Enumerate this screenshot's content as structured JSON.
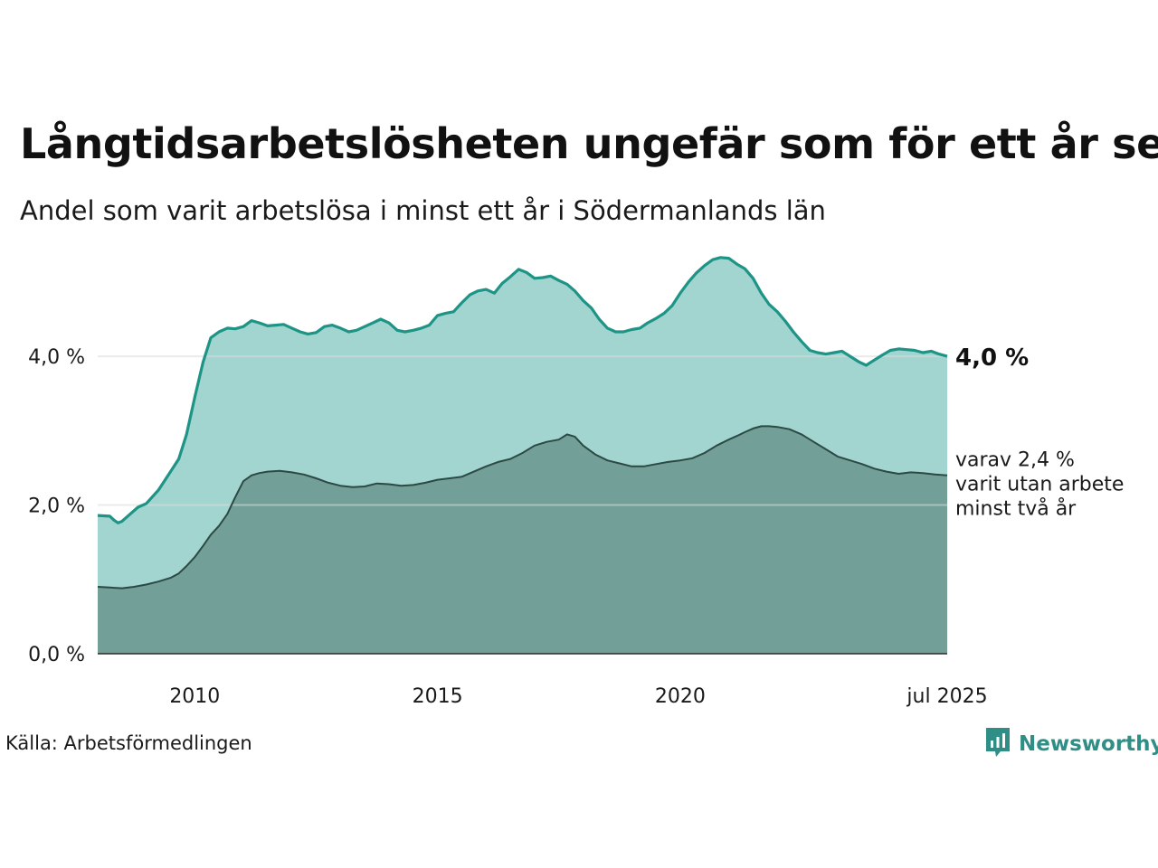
{
  "header": {
    "title": "Långtidsarbetslösheten ungefär som för ett år sen",
    "subtitle": "Andel som varit arbetslösa i minst ett år i Södermanlands län"
  },
  "footer": {
    "source": "Källa: Arbetsförmedlingen",
    "brand": "Newsworthy"
  },
  "labels": {
    "end_value": "4,0 %",
    "secondary_line1": "varav 2,4 %",
    "secondary_line2": "varit utan arbete",
    "secondary_line3": "minst två år"
  },
  "colors": {
    "series1_fill": "#a3d5d0",
    "series1_line": "#1e9486",
    "series2_fill": "#72a099",
    "series2_line": "#2c4944",
    "gridline": "#d9dedd",
    "brand": "#2f8f86"
  },
  "chart_data": {
    "type": "area",
    "xlim": [
      2008.0,
      2025.5
    ],
    "ylim": [
      0,
      5.4
    ],
    "x_ticks": [
      {
        "value": 2010,
        "label": "2010"
      },
      {
        "value": 2015,
        "label": "2015"
      },
      {
        "value": 2020,
        "label": "2020"
      },
      {
        "value": 2025.5,
        "label": "jul 2025"
      }
    ],
    "y_ticks": [
      {
        "value": 0,
        "label": "0,0 %"
      },
      {
        "value": 2,
        "label": "2,0 %"
      },
      {
        "value": 4,
        "label": "4,0 %"
      }
    ],
    "grid": true,
    "series": [
      {
        "key": "min1",
        "x": [
          2008.0,
          2008.25,
          2008.33,
          2008.42,
          2008.5,
          2008.67,
          2008.83,
          2009.0,
          2009.25,
          2009.5,
          2009.67,
          2009.83,
          2010.0,
          2010.17,
          2010.33,
          2010.5,
          2010.67,
          2010.83,
          2011.0,
          2011.17,
          2011.33,
          2011.5,
          2011.67,
          2011.83,
          2012.0,
          2012.17,
          2012.33,
          2012.5,
          2012.67,
          2012.83,
          2013.0,
          2013.17,
          2013.33,
          2013.5,
          2013.67,
          2013.83,
          2014.0,
          2014.17,
          2014.33,
          2014.5,
          2014.67,
          2014.83,
          2015.0,
          2015.17,
          2015.33,
          2015.5,
          2015.67,
          2015.83,
          2016.0,
          2016.17,
          2016.33,
          2016.5,
          2016.67,
          2016.83,
          2017.0,
          2017.17,
          2017.33,
          2017.5,
          2017.67,
          2017.83,
          2018.0,
          2018.17,
          2018.33,
          2018.5,
          2018.67,
          2018.83,
          2019.0,
          2019.17,
          2019.33,
          2019.5,
          2019.67,
          2019.83,
          2020.0,
          2020.17,
          2020.33,
          2020.5,
          2020.67,
          2020.83,
          2021.0,
          2021.17,
          2021.33,
          2021.5,
          2021.67,
          2021.83,
          2022.0,
          2022.17,
          2022.33,
          2022.5,
          2022.67,
          2022.83,
          2023.0,
          2023.17,
          2023.33,
          2023.5,
          2023.67,
          2023.83,
          2024.0,
          2024.17,
          2024.33,
          2024.5,
          2024.67,
          2024.83,
          2025.0,
          2025.17,
          2025.33,
          2025.5
        ],
        "values": [
          1.86,
          1.85,
          1.8,
          1.76,
          1.78,
          1.88,
          1.97,
          2.02,
          2.2,
          2.45,
          2.62,
          2.95,
          3.45,
          3.92,
          4.25,
          4.33,
          4.38,
          4.37,
          4.4,
          4.48,
          4.45,
          4.41,
          4.42,
          4.43,
          4.38,
          4.33,
          4.3,
          4.32,
          4.4,
          4.42,
          4.38,
          4.33,
          4.35,
          4.4,
          4.45,
          4.5,
          4.45,
          4.35,
          4.33,
          4.35,
          4.38,
          4.42,
          4.55,
          4.58,
          4.6,
          4.72,
          4.83,
          4.88,
          4.9,
          4.85,
          4.98,
          5.07,
          5.17,
          5.13,
          5.05,
          5.06,
          5.08,
          5.02,
          4.97,
          4.88,
          4.75,
          4.65,
          4.5,
          4.38,
          4.33,
          4.33,
          4.36,
          4.38,
          4.45,
          4.51,
          4.58,
          4.68,
          4.85,
          5.0,
          5.12,
          5.22,
          5.3,
          5.33,
          5.32,
          5.24,
          5.18,
          5.05,
          4.85,
          4.7,
          4.6,
          4.47,
          4.33,
          4.2,
          4.08,
          4.05,
          4.03,
          4.05,
          4.07,
          4.0,
          3.93,
          3.88,
          3.95,
          4.02,
          4.08,
          4.1,
          4.09,
          4.08,
          4.05,
          4.07,
          4.03,
          4.0
        ]
      },
      {
        "key": "min2",
        "x": [
          2008.0,
          2008.25,
          2008.5,
          2008.75,
          2009.0,
          2009.25,
          2009.5,
          2009.67,
          2009.83,
          2010.0,
          2010.17,
          2010.33,
          2010.5,
          2010.67,
          2010.83,
          2011.0,
          2011.17,
          2011.33,
          2011.5,
          2011.75,
          2012.0,
          2012.25,
          2012.5,
          2012.75,
          2013.0,
          2013.25,
          2013.5,
          2013.75,
          2014.0,
          2014.25,
          2014.5,
          2014.75,
          2015.0,
          2015.25,
          2015.5,
          2015.75,
          2016.0,
          2016.25,
          2016.5,
          2016.75,
          2017.0,
          2017.25,
          2017.5,
          2017.67,
          2017.83,
          2018.0,
          2018.25,
          2018.5,
          2018.75,
          2019.0,
          2019.25,
          2019.5,
          2019.75,
          2020.0,
          2020.25,
          2020.5,
          2020.75,
          2021.0,
          2021.17,
          2021.33,
          2021.5,
          2021.67,
          2021.83,
          2022.0,
          2022.25,
          2022.5,
          2022.75,
          2023.0,
          2023.25,
          2023.5,
          2023.75,
          2024.0,
          2024.25,
          2024.5,
          2024.75,
          2025.0,
          2025.25,
          2025.5
        ],
        "values": [
          0.9,
          0.89,
          0.88,
          0.9,
          0.93,
          0.97,
          1.02,
          1.08,
          1.18,
          1.3,
          1.45,
          1.6,
          1.72,
          1.88,
          2.1,
          2.32,
          2.4,
          2.43,
          2.45,
          2.46,
          2.44,
          2.41,
          2.36,
          2.3,
          2.26,
          2.24,
          2.25,
          2.29,
          2.28,
          2.26,
          2.27,
          2.3,
          2.34,
          2.36,
          2.38,
          2.45,
          2.52,
          2.58,
          2.62,
          2.7,
          2.8,
          2.85,
          2.88,
          2.95,
          2.92,
          2.8,
          2.68,
          2.6,
          2.56,
          2.52,
          2.52,
          2.55,
          2.58,
          2.6,
          2.63,
          2.7,
          2.8,
          2.88,
          2.93,
          2.98,
          3.03,
          3.06,
          3.06,
          3.05,
          3.02,
          2.95,
          2.85,
          2.75,
          2.65,
          2.6,
          2.55,
          2.49,
          2.45,
          2.42,
          2.44,
          2.43,
          2.41,
          2.4
        ]
      }
    ]
  }
}
